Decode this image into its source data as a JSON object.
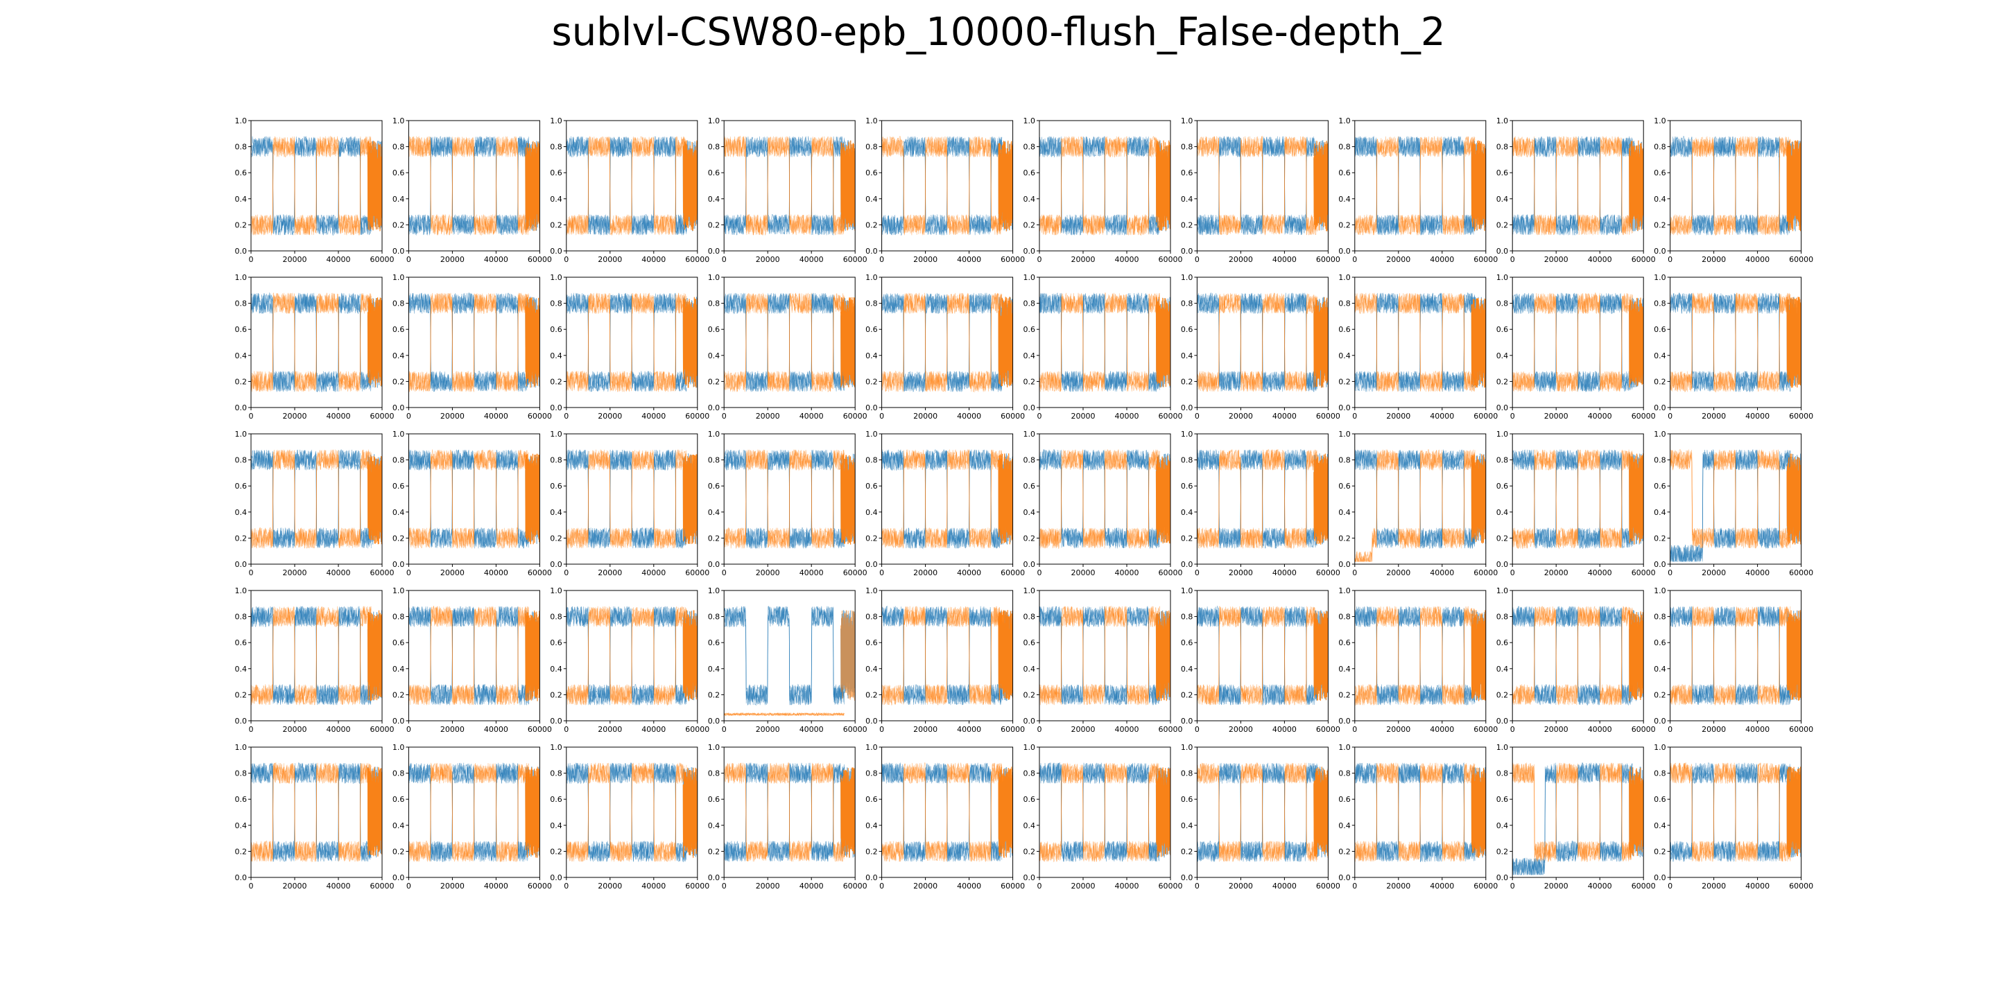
{
  "figure": {
    "title": "sublvl-CSW80-epb_10000-flush_False-depth_2"
  },
  "colors": {
    "series_a": "#1f77b4",
    "series_b": "#ff7f0e",
    "axes": "#000000",
    "background": "#ffffff"
  },
  "chart_data": {
    "type": "line",
    "title": "sublvl-CSW80-epb_10000-flush_False-depth_2",
    "grid": {
      "rows": 5,
      "cols": 10
    },
    "xlim": [
      0,
      60000
    ],
    "ylim": [
      0.0,
      1.0
    ],
    "xticks": [
      0,
      20000,
      40000,
      60000
    ],
    "xtick_labels": [
      "0",
      "20000",
      "40000",
      "60000"
    ],
    "yticks": [
      0.0,
      0.2,
      0.4,
      0.6,
      0.8,
      1.0
    ],
    "ytick_labels": [
      "0.0",
      "0.2",
      "0.4",
      "0.6",
      "0.8",
      "1.0"
    ],
    "grid_lines": false,
    "legend": "none",
    "series_count_per_panel": 2,
    "typical_values": {
      "high": 0.8,
      "low": 0.2,
      "switch_x": [
        10000,
        20000,
        30000,
        40000,
        50000
      ]
    },
    "panels_first_high": [
      "a",
      "b",
      "a",
      "b",
      "b",
      "a",
      "b",
      "a",
      "b",
      "a",
      "a",
      "a",
      "a",
      "a",
      "a",
      "a",
      "a",
      "b",
      "a",
      "a",
      "a",
      "a",
      "a",
      "a",
      "a",
      "a",
      "a",
      "a",
      "a",
      "b",
      "a",
      "a",
      "a",
      "a",
      "a",
      "a",
      "a",
      "a",
      "a",
      "a",
      "a",
      "a",
      "a",
      "b",
      "a",
      "a",
      "b",
      "a",
      "b",
      "b"
    ],
    "special_panels": [
      {
        "row": 3,
        "col": 8,
        "series_b_low_start": 0.02
      },
      {
        "row": 3,
        "col": 10,
        "series_a_low_start": 0.07
      },
      {
        "row": 4,
        "col": 4,
        "series_b_flat": 0.05,
        "series_a_dense_end": true
      },
      {
        "row": 5,
        "col": 9,
        "series_a_low_start": 0.07
      }
    ]
  }
}
